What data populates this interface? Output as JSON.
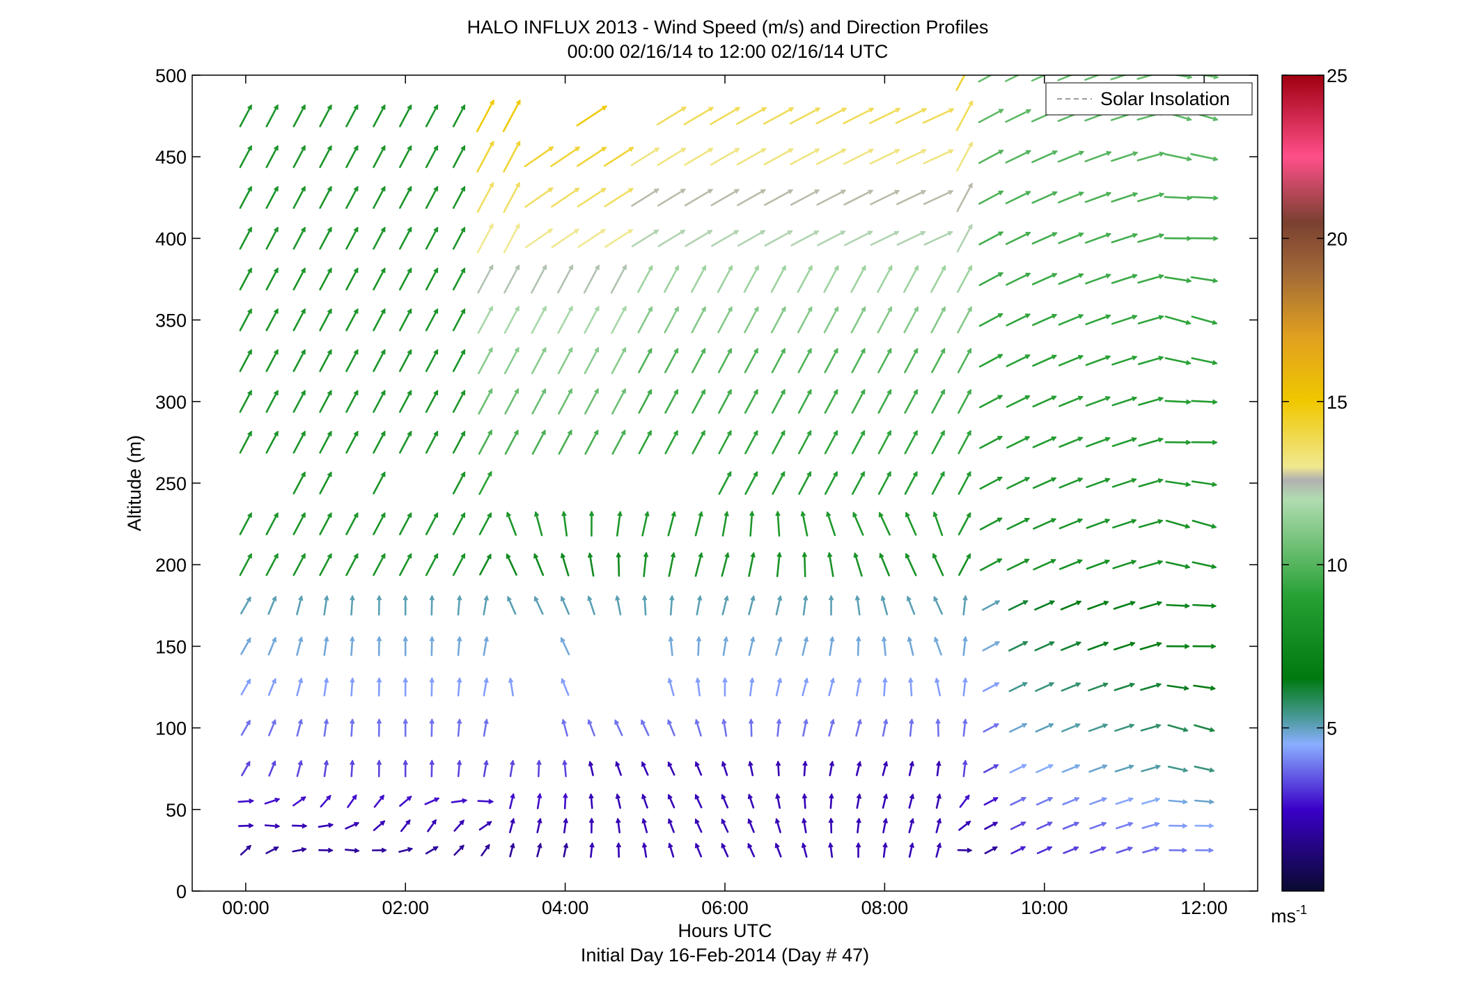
{
  "chart_data": {
    "type": "quiver",
    "title": "HALO INFLUX 2013 - Wind Speed (m/s) and Direction Profiles",
    "subtitle": "00:00 02/16/14 to 12:00 02/16/14  UTC",
    "xlabel": "Hours UTC",
    "xlabel2": "Initial Day 16-Feb-2014 (Day # 47)",
    "ylabel": "Altitude (m)",
    "xlim": [
      -0.67,
      12.67
    ],
    "ylim": [
      0,
      500
    ],
    "x_ticks": [
      0,
      2,
      4,
      6,
      8,
      10,
      12
    ],
    "x_tick_labels": [
      "00:00",
      "02:00",
      "04:00",
      "06:00",
      "08:00",
      "10:00",
      "12:00"
    ],
    "y_ticks": [
      0,
      50,
      100,
      150,
      200,
      250,
      300,
      350,
      400,
      450,
      500
    ],
    "y_tick_labels": [
      "0",
      "50",
      "100",
      "150",
      "200",
      "250",
      "300",
      "350",
      "400",
      "450",
      "500"
    ],
    "legend": {
      "label": "Solar Insolation",
      "placement": "top-right",
      "style": "dashed",
      "color": "#999999"
    },
    "colorbar": {
      "range": [
        0,
        25
      ],
      "ticks": [
        5,
        10,
        15,
        20,
        25
      ],
      "tick_labels": [
        "5",
        "10",
        "15",
        "20",
        "25"
      ],
      "unit_base": "ms",
      "unit_exp": "-1",
      "stops": [
        {
          "v": 0,
          "c": "#0a0a30"
        },
        {
          "v": 2.5,
          "c": "#3a00c8"
        },
        {
          "v": 4.5,
          "c": "#8aaeff"
        },
        {
          "v": 5.3,
          "c": "#4a9a9a"
        },
        {
          "v": 6.5,
          "c": "#007a10"
        },
        {
          "v": 9,
          "c": "#26a033"
        },
        {
          "v": 12,
          "c": "#b0dcb0"
        },
        {
          "v": 12.6,
          "c": "#b0b0b0"
        },
        {
          "v": 13,
          "c": "#f0e890"
        },
        {
          "v": 15,
          "c": "#f0c800"
        },
        {
          "v": 17,
          "c": "#e0a020"
        },
        {
          "v": 19,
          "c": "#a06838"
        },
        {
          "v": 20.5,
          "c": "#7a4030"
        },
        {
          "v": 22.5,
          "c": "#ff4f8a"
        },
        {
          "v": 25,
          "c": "#a00010"
        }
      ]
    },
    "vector_grid": {
      "times": [
        0,
        0.33,
        0.67,
        1,
        1.33,
        1.67,
        2,
        2.33,
        2.67,
        3,
        3.33,
        3.67,
        4,
        4.33,
        4.67,
        5,
        5.33,
        5.67,
        6,
        6.33,
        6.67,
        7,
        7.33,
        7.67,
        8,
        8.33,
        8.67,
        9,
        9.33,
        9.67,
        10,
        10.33,
        10.67,
        11,
        11.33,
        11.67,
        12
      ],
      "altitudes": [
        25,
        40,
        55,
        75,
        100,
        125,
        150,
        175,
        200,
        225,
        250,
        275,
        300,
        325,
        350,
        375,
        400,
        425,
        450,
        475,
        500
      ]
    }
  }
}
